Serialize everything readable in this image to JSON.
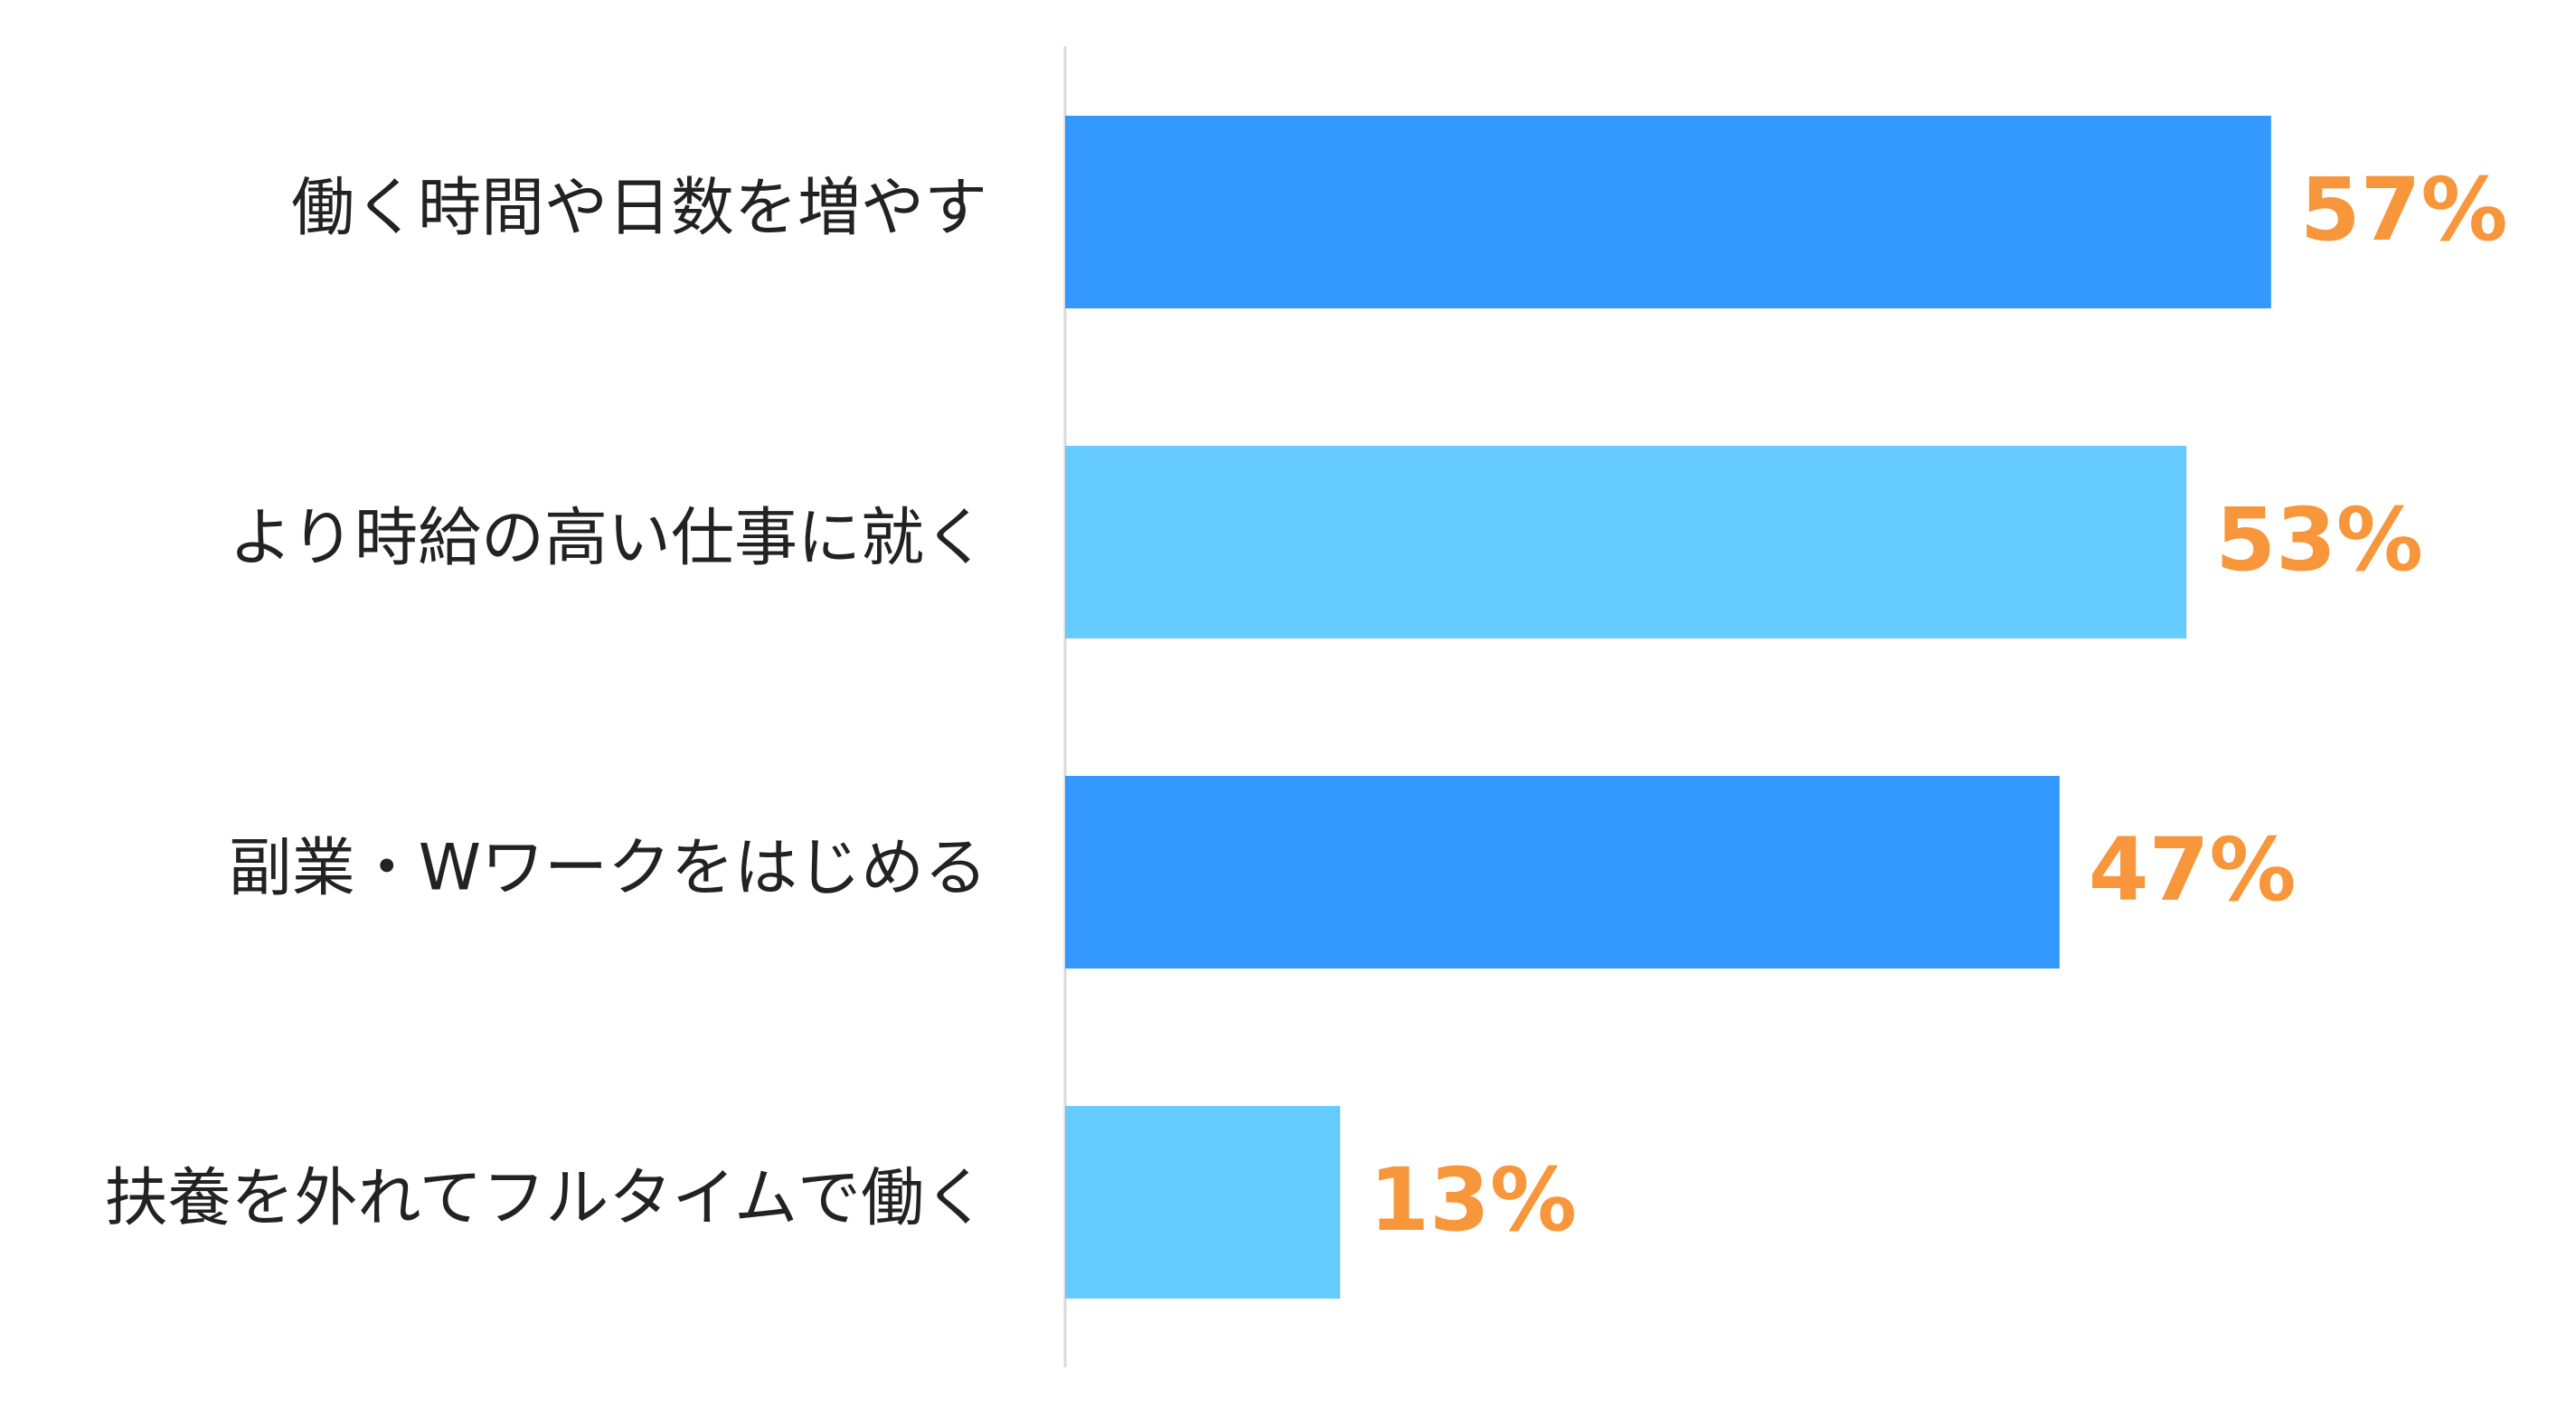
{
  "chart_data": {
    "type": "bar",
    "orientation": "horizontal",
    "categories": [
      "働く時間や日数を増やす",
      "より時給の高い仕事に就く",
      "副業・Wワークをはじめる",
      "扶養を外れてフルタイムで働く"
    ],
    "values": [
      57,
      53,
      47,
      13
    ],
    "value_labels": [
      "57%",
      "53%",
      "47%",
      "13%"
    ],
    "colors": [
      "#3399ff",
      "#66ccff",
      "#3399ff",
      "#66ccff"
    ],
    "label_color": "#f7963a"
  }
}
